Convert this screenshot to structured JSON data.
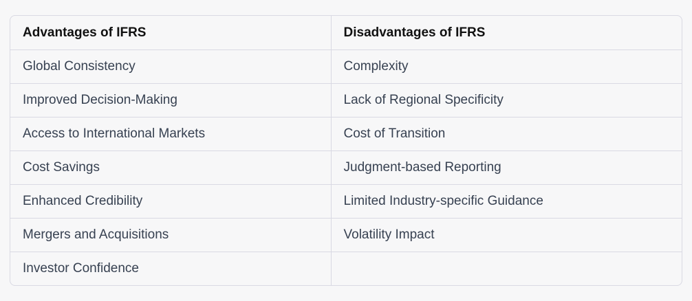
{
  "table": {
    "headers": [
      "Advantages of IFRS",
      "Disadvantages of IFRS"
    ],
    "rows": [
      [
        "Global Consistency",
        "Complexity"
      ],
      [
        "Improved Decision-Making",
        "Lack of Regional Specificity"
      ],
      [
        "Access to International Markets",
        "Cost of Transition"
      ],
      [
        "Cost Savings",
        "Judgment-based Reporting"
      ],
      [
        "Enhanced Credibility",
        "Limited Industry-specific Guidance"
      ],
      [
        "Mergers and Acquisitions",
        "Volatility Impact"
      ],
      [
        "Investor Confidence",
        ""
      ]
    ]
  }
}
